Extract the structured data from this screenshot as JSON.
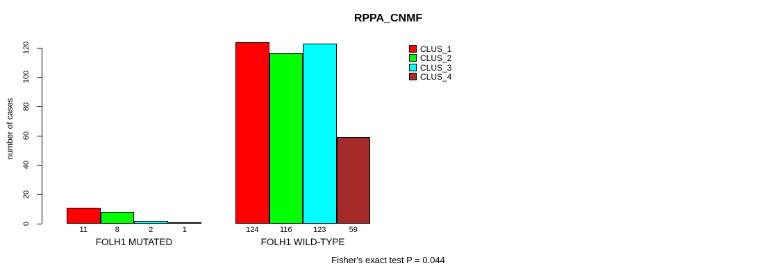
{
  "chart_data": {
    "type": "bar",
    "title": "RPPA_CNMF",
    "ylabel": "number of cases",
    "xlabel": "",
    "ylim": [
      0,
      120
    ],
    "yticks": [
      0,
      20,
      40,
      60,
      80,
      100,
      120
    ],
    "grid": false,
    "legend_position": "top-right",
    "categories": [
      "FOLH1 MUTATED",
      "FOLH1 WILD-TYPE"
    ],
    "series": [
      {
        "name": "CLUS_1",
        "color": "#ff0000",
        "values": [
          11,
          124
        ]
      },
      {
        "name": "CLUS_2",
        "color": "#00ff00",
        "values": [
          8,
          116
        ]
      },
      {
        "name": "CLUS_3",
        "color": "#00ffff",
        "values": [
          2,
          123
        ]
      },
      {
        "name": "CLUS_4",
        "color": "#a52a2a",
        "values": [
          1,
          59
        ]
      }
    ],
    "groups": [
      {
        "label": "FOLH1 MUTATED",
        "values": [
          11,
          8,
          2,
          1
        ]
      },
      {
        "label": "FOLH1 WILD-TYPE",
        "values": [
          124,
          116,
          123,
          59
        ]
      }
    ],
    "bar_value_labels": [
      [
        11,
        8,
        2,
        1
      ],
      [
        124,
        116,
        123,
        59
      ]
    ],
    "annotation": "Fisher's exact test P = 0.044"
  },
  "colors": {
    "axis": "#000000",
    "background": "#ffffff",
    "clus_1": "#ff0000",
    "clus_2": "#00ff00",
    "clus_3": "#00ffff",
    "clus_4": "#a52a2a"
  }
}
